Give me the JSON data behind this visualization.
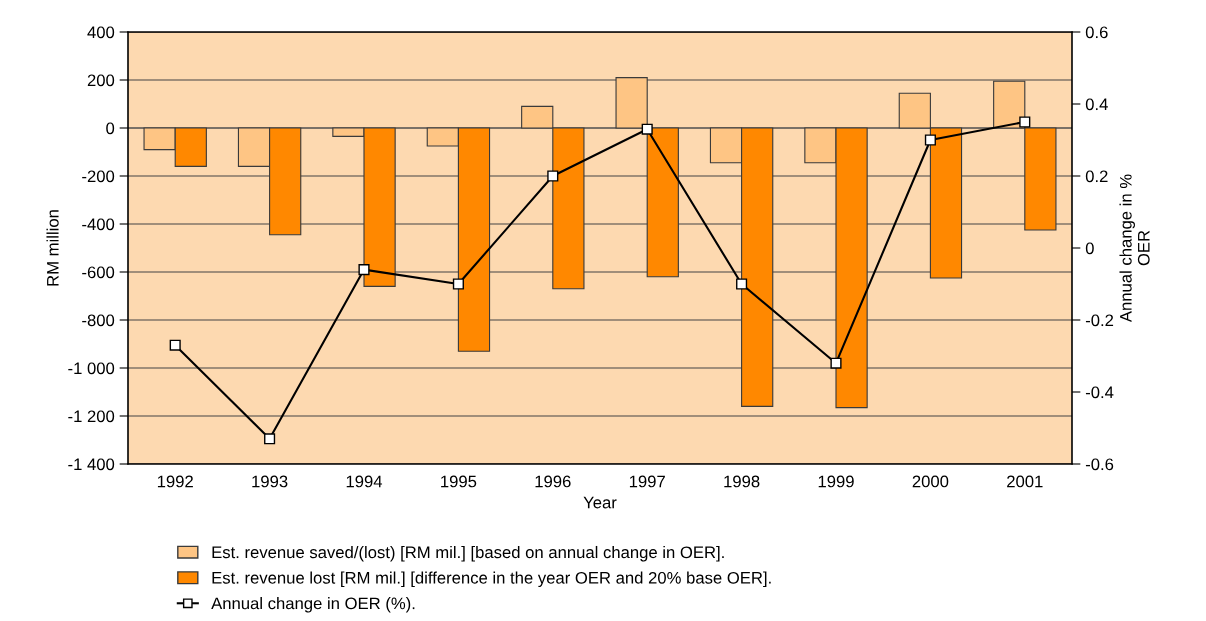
{
  "chart_data": {
    "type": "bar",
    "xlabel": "Year",
    "ylabel": "RM million",
    "y2label": "Annual change in %\nOER",
    "categories": [
      "1992",
      "1993",
      "1994",
      "1995",
      "1996",
      "1997",
      "1998",
      "1999",
      "2000",
      "2001"
    ],
    "series": [
      {
        "name": "Est. revenue saved/(lost) [RM mil.] [based on annual change in OER].",
        "color": "#fec584",
        "values": [
          -90,
          -160,
          -35,
          -75,
          90,
          210,
          -145,
          -145,
          145,
          195
        ]
      },
      {
        "name": "Est. revenue lost [RM mil.] [difference in the year OER and 20% base OER].",
        "color": "#ff8800",
        "values": [
          -160,
          -445,
          -660,
          -930,
          -670,
          -620,
          -1160,
          -1165,
          -625,
          -425
        ]
      },
      {
        "name": "Annual change in OER (%).",
        "type": "line",
        "axis": "y2",
        "color": "#000000",
        "marker": "square",
        "values": [
          -0.27,
          -0.53,
          -0.06,
          -0.1,
          0.2,
          0.33,
          -0.1,
          -0.32,
          0.3,
          0.35
        ]
      }
    ],
    "ylim": [
      -1400,
      400
    ],
    "yticks": [
      {
        "value": -1400,
        "label": "-1 400"
      },
      {
        "value": -1200,
        "label": "-1 200"
      },
      {
        "value": -1000,
        "label": "-1 000"
      },
      -800,
      -600,
      -400,
      -200,
      0,
      200,
      400
    ],
    "y2lim": [
      -0.6,
      0.6
    ],
    "y2ticks": [
      -0.6,
      -0.4,
      -0.2,
      0,
      0.2,
      0.4,
      0.6
    ],
    "grid": "y",
    "legend": "bottom"
  }
}
